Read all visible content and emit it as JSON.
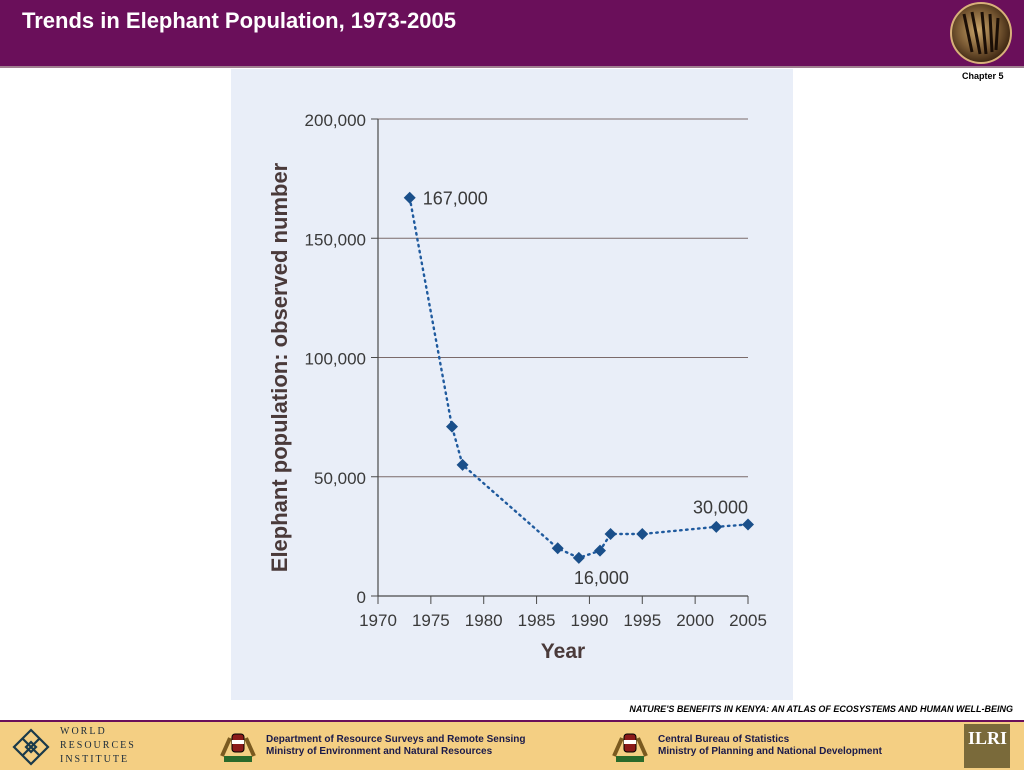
{
  "header": {
    "title": "Trends in Elephant Population, 1973-2005",
    "background": "#6a0f5a"
  },
  "chapter": "Chapter 5",
  "caption": "NATURE'S BENEFITS IN KENYA: AN ATLAS OF ECOSYSTEMS AND HUMAN WELL-BEING",
  "footer": {
    "wri": [
      "WORLD",
      "RESOURCES",
      "INSTITUTE"
    ],
    "dept1": [
      "Department of Resource Surveys and Remote Sensing",
      "Ministry of Environment and Natural Resources"
    ],
    "dept2": [
      "Central Bureau of Statistics",
      "Ministry of Planning and National Development"
    ],
    "ilri": "ILRI"
  },
  "chart_data": {
    "type": "line",
    "title": "",
    "xlabel": "Year",
    "ylabel": "Elephant population: observed number",
    "xlim": [
      1970,
      2005
    ],
    "ylim": [
      0,
      200000
    ],
    "x_ticks": [
      "1970",
      "1975",
      "1980",
      "1985",
      "1990",
      "1995",
      "2000",
      "2005"
    ],
    "y_ticks": [
      "0",
      "50,000",
      "100,000",
      "150,000",
      "200,000"
    ],
    "series": [
      {
        "color": "#1f5a9e",
        "x": [
          1973,
          1977,
          1978,
          1987,
          1989,
          1991,
          1992,
          1995,
          2002,
          2005
        ],
        "y": [
          167000,
          71000,
          55000,
          20000,
          16000,
          19000,
          26000,
          26000,
          29000,
          30000
        ]
      }
    ],
    "annotations": [
      {
        "x": 1973,
        "y": 167000,
        "text": "167,000",
        "position": "right"
      },
      {
        "x": 1989,
        "y": 16000,
        "text": "16,000",
        "position": "below"
      },
      {
        "x": 2005,
        "y": 30000,
        "text": "30,000",
        "position": "above-left"
      }
    ],
    "grid": true,
    "legend": "none"
  }
}
